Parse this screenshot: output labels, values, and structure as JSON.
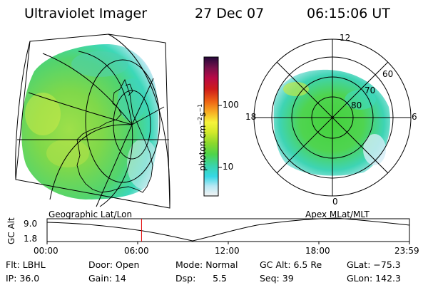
{
  "header": {
    "instrument": "Ultraviolet Imager",
    "date": "27 Dec 07",
    "time": "06:15:06 UT"
  },
  "geo_map": {
    "label": "Geographic Lat/Lon"
  },
  "colorbar": {
    "unit_label": "photon cm",
    "unit_exp1": "−2",
    "unit_mid": "s",
    "unit_exp2": "−1",
    "ticks": [
      "100",
      "10"
    ],
    "scale": "log",
    "colors": [
      "#f4f4f4",
      "#b8e8f4",
      "#36d8e6",
      "#3ad4a8",
      "#4ed44a",
      "#8cd82c",
      "#d4ea2a",
      "#f6f43a",
      "#f7b024",
      "#ee6414",
      "#ce1a1a",
      "#b80a46",
      "#78104a",
      "#24083a"
    ]
  },
  "polar_plot": {
    "label": "Apex MLat/MLT",
    "lat_labels": [
      "60",
      "70",
      "80"
    ],
    "mlt_labels": [
      "12",
      "18",
      "6",
      "0"
    ]
  },
  "altitude_plot": {
    "ylabel": "GC Alt",
    "yticks": [
      "9.0",
      "1.8"
    ],
    "xticks": [
      "00:00",
      "06:00",
      "12:00",
      "18:00",
      "23:59"
    ],
    "marker_time": "06:15:06",
    "marker_color": "#e00000"
  },
  "status": {
    "filter": "Flt: LBHL",
    "ip": "IP: 36.0",
    "door": "Door: Open",
    "gain": "Gain: 14",
    "mode": "Mode: Normal",
    "dsp": "Dsp:      5.5",
    "gc_alt": "GC Alt: 6.5 Re",
    "seq": "Seq: 39",
    "glat": "GLat: −75.3",
    "glon": "GLon: 142.3"
  }
}
